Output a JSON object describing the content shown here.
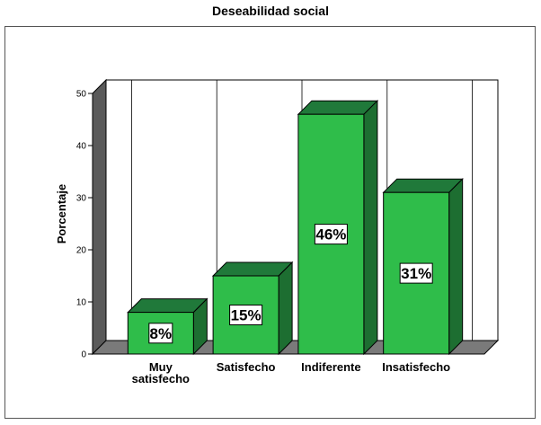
{
  "chart_data": {
    "type": "bar",
    "title": "Deseabilidad social",
    "ylabel": "Porcentaje",
    "xlabel": "",
    "categories": [
      "Muy\nsatisfecho",
      "Satisfecho",
      "Indiferente",
      "Insatisfecho"
    ],
    "values": [
      8,
      15,
      46,
      31
    ],
    "data_labels": [
      "8%",
      "15%",
      "46%",
      "31%"
    ],
    "ylim": [
      0,
      50
    ],
    "yticks": [
      0,
      10,
      20,
      30,
      40,
      50
    ],
    "grid": "vertical",
    "style": "3d"
  },
  "colors": {
    "bar_front": "#2fbd4a",
    "bar_top": "#20793a",
    "bar_side": "#1d6e31",
    "floor": "#7a7a7a",
    "wall": "#5a5a5a"
  }
}
